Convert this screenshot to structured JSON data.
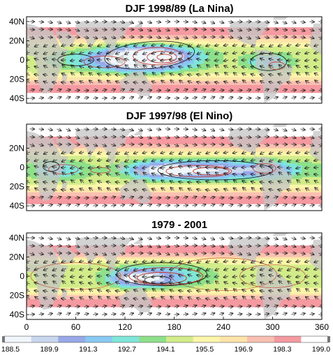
{
  "chart_data": [
    {
      "type": "heatmap",
      "title": "DJF 1998/89 (La Nina)",
      "ytick_labels": [
        "40N",
        "20N",
        "0",
        "20S",
        "40S"
      ],
      "yticks": [
        40,
        20,
        0,
        -20,
        -40
      ],
      "xlim": [
        0,
        360
      ],
      "ylim": [
        -45,
        45
      ],
      "field_centers": [
        {
          "lon": 155,
          "lat": 3,
          "rlon": 55,
          "rlat": 14,
          "value": 188.8
        },
        {
          "lon": 125,
          "lat": 0,
          "rlon": 45,
          "rlat": 12,
          "value": 190.6
        },
        {
          "lon": 60,
          "lat": 0,
          "rlon": 35,
          "rlat": 10,
          "value": 193.3
        },
        {
          "lon": 295,
          "lat": -2,
          "rlon": 28,
          "rlat": 9,
          "value": 192.0
        }
      ]
    },
    {
      "type": "heatmap",
      "title": "DJF 1997/98 (El Nino)",
      "ytick_labels": [
        "20N",
        "0",
        "20S",
        "40S"
      ],
      "yticks": [
        20,
        0,
        -20,
        -40
      ],
      "xlim": [
        0,
        360
      ],
      "ylim": [
        -45,
        45
      ],
      "field_centers": [
        {
          "lon": 220,
          "lat": -3,
          "rlon": 65,
          "rlat": 10,
          "value": 189.6
        },
        {
          "lon": 160,
          "lat": -3,
          "rlon": 40,
          "rlat": 9,
          "value": 190.8
        },
        {
          "lon": 40,
          "lat": -3,
          "rlon": 35,
          "rlat": 10,
          "value": 192.2
        },
        {
          "lon": 300,
          "lat": -2,
          "rlon": 40,
          "rlat": 9,
          "value": 191.8
        }
      ]
    },
    {
      "type": "heatmap",
      "title": "1979 - 2001",
      "ytick_labels": [
        "40N",
        "20N",
        "0",
        "20S",
        "40S"
      ],
      "yticks": [
        40,
        20,
        0,
        -20,
        -40
      ],
      "xlim": [
        0,
        360
      ],
      "ylim": [
        -45,
        45
      ],
      "xtick_labels": [
        "0",
        "60",
        "120",
        "180",
        "240",
        "300",
        "360"
      ],
      "xticks": [
        0,
        60,
        120,
        180,
        240,
        300,
        360
      ],
      "field_centers": [
        {
          "lon": 160,
          "lat": 0,
          "rlon": 55,
          "rlat": 12,
          "value": 191.2
        },
        {
          "lon": 135,
          "lat": -3,
          "rlon": 30,
          "rlat": 8,
          "value": 190.6
        },
        {
          "lon": 60,
          "lat": 0,
          "rlon": 40,
          "rlat": 10,
          "value": 195.0
        },
        {
          "lon": 300,
          "lat": 0,
          "rlon": 40,
          "rlat": 10,
          "value": 195.2
        }
      ]
    }
  ],
  "colorbar": {
    "tick_labels": [
      "188.5",
      "189.9",
      "191.3",
      "192.7",
      "194.1",
      "195.5",
      "196.9",
      "198.3",
      "199.0"
    ],
    "colors": [
      "#f0f6fb",
      "#c8d7ef",
      "#98a8e8",
      "#88c8f2",
      "#7fe6d9",
      "#8ee08a",
      "#d2ec8a",
      "#fbf6aa",
      "#fde4a9",
      "#f9c0b2",
      "#f49aa0",
      "#ffffff"
    ],
    "min": 188.5,
    "max": 199.0
  }
}
